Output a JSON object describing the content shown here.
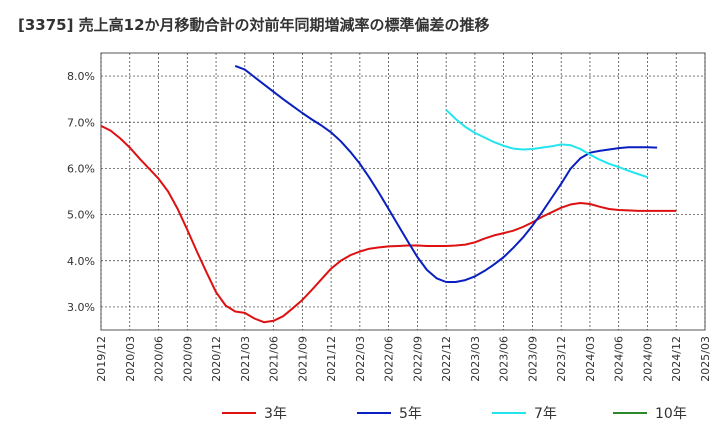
{
  "title": "[3375]  売上高12か月移動合計の対前年同期増減率の標準偏差の推移",
  "chart_data": {
    "type": "line",
    "title": "[3375]  売上高12か月移動合計の対前年同期増減率の標準偏差の推移",
    "xlabel": "",
    "ylabel": "",
    "x_range": [
      "2019-12",
      "2025-03"
    ],
    "ylim": [
      2.5,
      8.5
    ],
    "grid": true,
    "legend_position": "bottom",
    "x_ticks": [
      "2019/12",
      "2020/03",
      "2020/06",
      "2020/09",
      "2020/12",
      "2021/03",
      "2021/06",
      "2021/09",
      "2021/12",
      "2022/03",
      "2022/06",
      "2022/09",
      "2022/12",
      "2023/03",
      "2023/06",
      "2023/09",
      "2023/12",
      "2024/03",
      "2024/06",
      "2024/09",
      "2024/12",
      "2025/03"
    ],
    "y_ticks": [
      3.0,
      4.0,
      5.0,
      6.0,
      7.0,
      8.0
    ],
    "y_tick_labels": [
      "3.0%",
      "4.0%",
      "5.0%",
      "6.0%",
      "7.0%",
      "8.0%"
    ],
    "series": [
      {
        "name": "3年",
        "color": "#dd1111",
        "points": [
          [
            "2019-12",
            6.92
          ],
          [
            "2020-01",
            6.82
          ],
          [
            "2020-02",
            6.65
          ],
          [
            "2020-03",
            6.45
          ],
          [
            "2020-04",
            6.22
          ],
          [
            "2020-05",
            6.0
          ],
          [
            "2020-06",
            5.78
          ],
          [
            "2020-07",
            5.5
          ],
          [
            "2020-08",
            5.12
          ],
          [
            "2020-09",
            4.67
          ],
          [
            "2020-10",
            4.2
          ],
          [
            "2020-11",
            3.75
          ],
          [
            "2020-12",
            3.32
          ],
          [
            "2021-01",
            3.03
          ],
          [
            "2021-02",
            2.9
          ],
          [
            "2021-03",
            2.87
          ],
          [
            "2021-04",
            2.75
          ],
          [
            "2021-05",
            2.67
          ],
          [
            "2021-06",
            2.7
          ],
          [
            "2021-07",
            2.8
          ],
          [
            "2021-08",
            2.97
          ],
          [
            "2021-09",
            3.15
          ],
          [
            "2021-10",
            3.37
          ],
          [
            "2021-11",
            3.6
          ],
          [
            "2021-12",
            3.83
          ],
          [
            "2022-01",
            4.0
          ],
          [
            "2022-02",
            4.12
          ],
          [
            "2022-03",
            4.2
          ],
          [
            "2022-04",
            4.26
          ],
          [
            "2022-05",
            4.29
          ],
          [
            "2022-06",
            4.31
          ],
          [
            "2022-07",
            4.32
          ],
          [
            "2022-08",
            4.33
          ],
          [
            "2022-09",
            4.33
          ],
          [
            "2022-10",
            4.32
          ],
          [
            "2022-11",
            4.32
          ],
          [
            "2022-12",
            4.32
          ],
          [
            "2023-01",
            4.33
          ],
          [
            "2023-02",
            4.35
          ],
          [
            "2023-03",
            4.4
          ],
          [
            "2023-04",
            4.48
          ],
          [
            "2023-05",
            4.55
          ],
          [
            "2023-06",
            4.6
          ],
          [
            "2023-07",
            4.65
          ],
          [
            "2023-08",
            4.73
          ],
          [
            "2023-09",
            4.83
          ],
          [
            "2023-10",
            4.95
          ],
          [
            "2023-11",
            5.05
          ],
          [
            "2023-12",
            5.15
          ],
          [
            "2024-01",
            5.22
          ],
          [
            "2024-02",
            5.25
          ],
          [
            "2024-03",
            5.23
          ],
          [
            "2024-04",
            5.17
          ],
          [
            "2024-05",
            5.12
          ],
          [
            "2024-06",
            5.1
          ],
          [
            "2024-07",
            5.09
          ],
          [
            "2024-08",
            5.08
          ],
          [
            "2024-09",
            5.08
          ],
          [
            "2024-10",
            5.08
          ],
          [
            "2024-11",
            5.08
          ],
          [
            "2024-12",
            5.08
          ]
        ]
      },
      {
        "name": "5年",
        "color": "#0a1fbf",
        "points": [
          [
            "2021-02",
            8.22
          ],
          [
            "2021-03",
            8.14
          ],
          [
            "2021-04",
            7.98
          ],
          [
            "2021-05",
            7.82
          ],
          [
            "2021-06",
            7.66
          ],
          [
            "2021-07",
            7.5
          ],
          [
            "2021-08",
            7.35
          ],
          [
            "2021-09",
            7.2
          ],
          [
            "2021-10",
            7.06
          ],
          [
            "2021-11",
            6.93
          ],
          [
            "2021-12",
            6.78
          ],
          [
            "2022-01",
            6.59
          ],
          [
            "2022-02",
            6.36
          ],
          [
            "2022-03",
            6.1
          ],
          [
            "2022-04",
            5.8
          ],
          [
            "2022-05",
            5.47
          ],
          [
            "2022-06",
            5.12
          ],
          [
            "2022-07",
            4.77
          ],
          [
            "2022-08",
            4.42
          ],
          [
            "2022-09",
            4.08
          ],
          [
            "2022-10",
            3.8
          ],
          [
            "2022-11",
            3.62
          ],
          [
            "2022-12",
            3.54
          ],
          [
            "2023-01",
            3.54
          ],
          [
            "2023-02",
            3.58
          ],
          [
            "2023-03",
            3.66
          ],
          [
            "2023-04",
            3.78
          ],
          [
            "2023-05",
            3.92
          ],
          [
            "2023-06",
            4.08
          ],
          [
            "2023-07",
            4.28
          ],
          [
            "2023-08",
            4.5
          ],
          [
            "2023-09",
            4.76
          ],
          [
            "2023-10",
            5.05
          ],
          [
            "2023-11",
            5.36
          ],
          [
            "2023-12",
            5.67
          ],
          [
            "2024-01",
            6.0
          ],
          [
            "2024-02",
            6.22
          ],
          [
            "2024-03",
            6.34
          ],
          [
            "2024-04",
            6.38
          ],
          [
            "2024-05",
            6.41
          ],
          [
            "2024-06",
            6.44
          ],
          [
            "2024-07",
            6.46
          ],
          [
            "2024-08",
            6.46
          ],
          [
            "2024-09",
            6.46
          ],
          [
            "2024-10",
            6.45
          ]
        ]
      },
      {
        "name": "7年",
        "color": "#22e5ee",
        "points": [
          [
            "2022-12",
            7.27
          ],
          [
            "2023-01",
            7.07
          ],
          [
            "2023-02",
            6.9
          ],
          [
            "2023-03",
            6.77
          ],
          [
            "2023-04",
            6.67
          ],
          [
            "2023-05",
            6.57
          ],
          [
            "2023-06",
            6.49
          ],
          [
            "2023-07",
            6.43
          ],
          [
            "2023-08",
            6.41
          ],
          [
            "2023-09",
            6.42
          ],
          [
            "2023-10",
            6.45
          ],
          [
            "2023-11",
            6.48
          ],
          [
            "2023-12",
            6.52
          ],
          [
            "2024-01",
            6.5
          ],
          [
            "2024-02",
            6.42
          ],
          [
            "2024-03",
            6.3
          ],
          [
            "2024-04",
            6.19
          ],
          [
            "2024-05",
            6.1
          ],
          [
            "2024-06",
            6.03
          ],
          [
            "2024-07",
            5.95
          ],
          [
            "2024-08",
            5.88
          ],
          [
            "2024-09",
            5.81
          ]
        ]
      },
      {
        "name": "10年",
        "color": "#2a8a2a",
        "points": []
      }
    ]
  }
}
